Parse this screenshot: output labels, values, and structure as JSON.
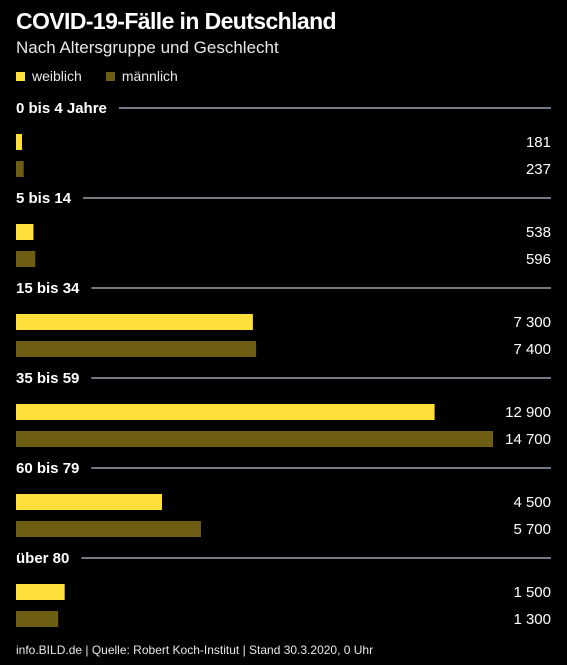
{
  "header": {
    "title": "COVID-19-Fälle in Deutschland",
    "subtitle": "Nach Altersgruppe und Geschlecht"
  },
  "footer": {
    "source": "info.BILD.de | Quelle: Robert Koch-Institut | Stand 30.3.2020, 0 Uhr"
  },
  "colors": {
    "female": "#ffe03a",
    "male": "#6e5e14",
    "divider": "#9aa3ad",
    "background": "#000000"
  },
  "chart_data": {
    "type": "bar",
    "orientation": "horizontal",
    "title": "COVID-19-Fälle in Deutschland",
    "subtitle": "Nach Altersgruppe und Geschlecht",
    "legend_position": "top-left",
    "xlim": [
      0,
      14700
    ],
    "grid": false,
    "categories": [
      "0 bis 4 Jahre",
      "5 bis 14",
      "15 bis 34",
      "35 bis 59",
      "60 bis 79",
      "über 80"
    ],
    "series": [
      {
        "name": "weiblich",
        "values": [
          181,
          538,
          7300,
          12900,
          4500,
          1500
        ],
        "labels": [
          "181",
          "538",
          "7 300",
          "12 900",
          "4 500",
          "1 500"
        ]
      },
      {
        "name": "männlich",
        "values": [
          237,
          596,
          7400,
          14700,
          5700,
          1300
        ],
        "labels": [
          "237",
          "596",
          "7 400",
          "14 700",
          "5 700",
          "1 300"
        ]
      }
    ]
  }
}
